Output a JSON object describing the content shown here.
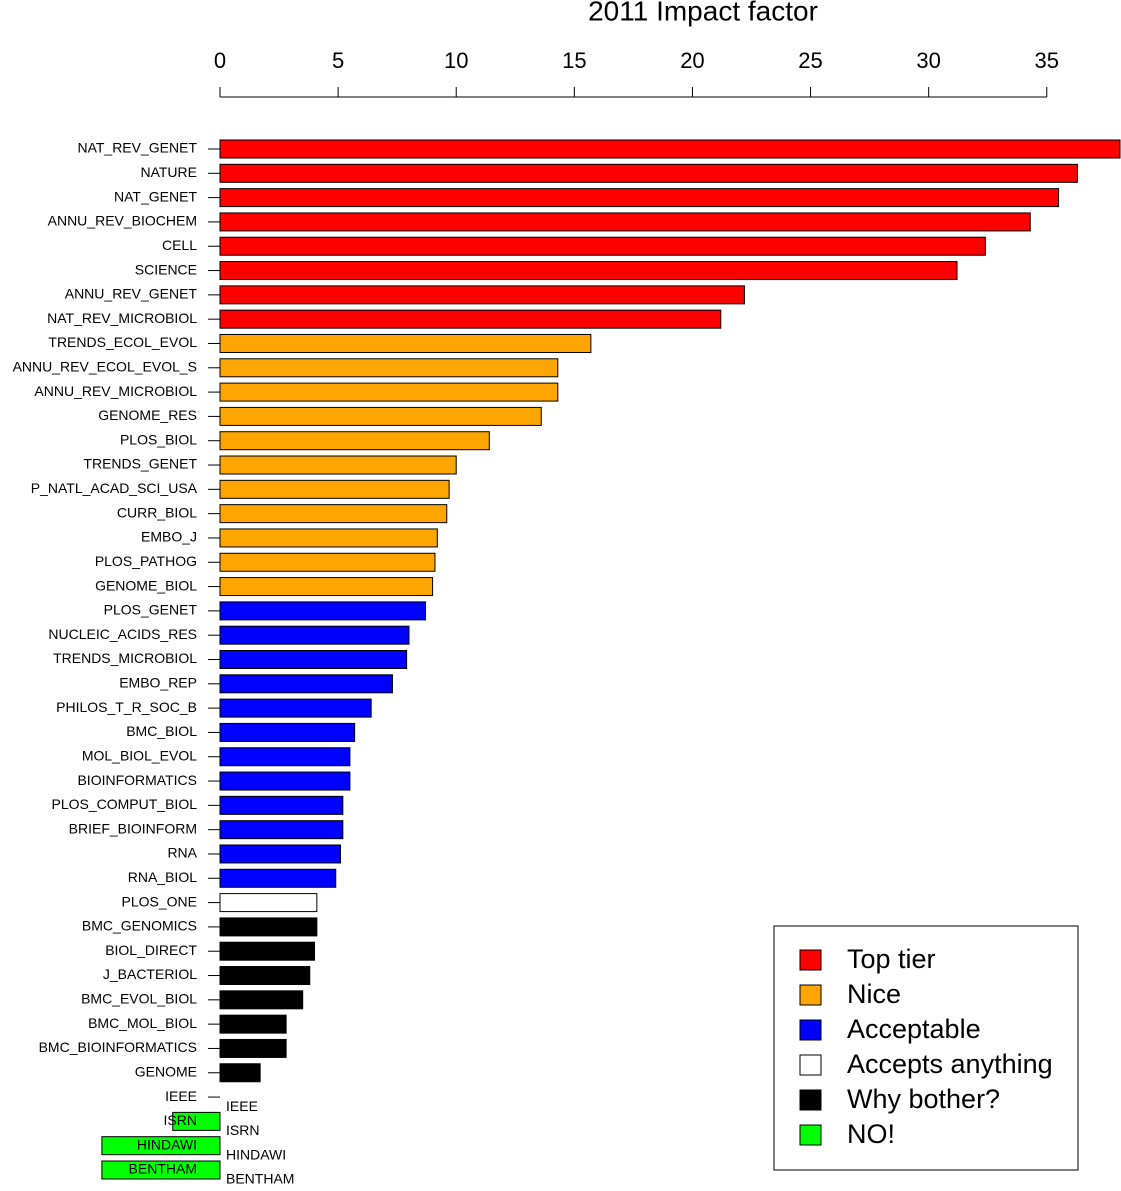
{
  "chart_data": {
    "type": "bar",
    "orientation": "horizontal",
    "title": "2011 Impact factor",
    "categories": [
      "NAT_REV_GENET",
      "NATURE",
      "NAT_GENET",
      "ANNU_REV_BIOCHEM",
      "CELL",
      "SCIENCE",
      "ANNU_REV_GENET",
      "NAT_REV_MICROBIOL",
      "TRENDS_ECOL_EVOL",
      "ANNU_REV_ECOL_EVOL_S",
      "ANNU_REV_MICROBIOL",
      "GENOME_RES",
      "PLOS_BIOL",
      "TRENDS_GENET",
      "P_NATL_ACAD_SCI_USA",
      "CURR_BIOL",
      "EMBO_J",
      "PLOS_PATHOG",
      "GENOME_BIOL",
      "PLOS_GENET",
      "NUCLEIC_ACIDS_RES",
      "TRENDS_MICROBIOL",
      "EMBO_REP",
      "PHILOS_T_R_SOC_B",
      "BMC_BIOL",
      "MOL_BIOL_EVOL",
      "BIOINFORMATICS",
      "PLOS_COMPUT_BIOL",
      "BRIEF_BIOINFORM",
      "RNA",
      "RNA_BIOL",
      "PLOS_ONE",
      "BMC_GENOMICS",
      "BIOL_DIRECT",
      "J_BACTERIOL",
      "BMC_EVOL_BIOL",
      "BMC_MOL_BIOL",
      "BMC_BIOINFORMATICS",
      "GENOME",
      "IEEE",
      "ISRN",
      "HINDAWI",
      "BENTHAM"
    ],
    "series": [
      {
        "name": "Top tier",
        "color": "#ff0000",
        "values": [
          38.1,
          36.3,
          35.5,
          34.3,
          32.4,
          31.2,
          22.2,
          21.2,
          null,
          null,
          null,
          null,
          null,
          null,
          null,
          null,
          null,
          null,
          null,
          null,
          null,
          null,
          null,
          null,
          null,
          null,
          null,
          null,
          null,
          null,
          null,
          null,
          null,
          null,
          null,
          null,
          null,
          null,
          null,
          null,
          null,
          null,
          null
        ]
      },
      {
        "name": "Nice",
        "color": "#ffa500",
        "values": [
          null,
          null,
          null,
          null,
          null,
          null,
          null,
          null,
          15.7,
          14.3,
          14.3,
          13.6,
          11.4,
          10.0,
          9.7,
          9.6,
          9.2,
          9.1,
          9.0,
          null,
          null,
          null,
          null,
          null,
          null,
          null,
          null,
          null,
          null,
          null,
          null,
          null,
          null,
          null,
          null,
          null,
          null,
          null,
          null,
          null,
          null,
          null,
          null
        ]
      },
      {
        "name": "Acceptable",
        "color": "#0000ff",
        "values": [
          null,
          null,
          null,
          null,
          null,
          null,
          null,
          null,
          null,
          null,
          null,
          null,
          null,
          null,
          null,
          null,
          null,
          null,
          null,
          8.7,
          8.0,
          7.9,
          7.3,
          6.4,
          5.7,
          5.5,
          5.5,
          5.2,
          5.2,
          5.1,
          4.9,
          null,
          null,
          null,
          null,
          null,
          null,
          null,
          null,
          null,
          null,
          null,
          null
        ]
      },
      {
        "name": "Accepts anything",
        "color": "#ffffff",
        "values": [
          null,
          null,
          null,
          null,
          null,
          null,
          null,
          null,
          null,
          null,
          null,
          null,
          null,
          null,
          null,
          null,
          null,
          null,
          null,
          null,
          null,
          null,
          null,
          null,
          null,
          null,
          null,
          null,
          null,
          null,
          null,
          4.1,
          null,
          null,
          null,
          null,
          null,
          null,
          null,
          null,
          null,
          null,
          null
        ]
      },
      {
        "name": "Why bother?",
        "color": "#000000",
        "values": [
          null,
          null,
          null,
          null,
          null,
          null,
          null,
          null,
          null,
          null,
          null,
          null,
          null,
          null,
          null,
          null,
          null,
          null,
          null,
          null,
          null,
          null,
          null,
          null,
          null,
          null,
          null,
          null,
          null,
          null,
          null,
          null,
          4.1,
          4.0,
          3.8,
          3.5,
          2.8,
          2.8,
          1.7,
          null,
          null,
          null,
          null
        ]
      },
      {
        "name": "NO!",
        "color": "#00ff00",
        "values": [
          null,
          null,
          null,
          null,
          null,
          null,
          null,
          null,
          null,
          null,
          null,
          null,
          null,
          null,
          null,
          null,
          null,
          null,
          null,
          null,
          null,
          null,
          null,
          null,
          null,
          null,
          null,
          null,
          null,
          null,
          null,
          null,
          null,
          null,
          null,
          null,
          null,
          null,
          null,
          0,
          -2.0,
          -5.0,
          -5.0
        ]
      }
    ],
    "annotations": [
      "IEEE",
      "ISRN",
      "HINDAWI",
      "BENTHAM"
    ],
    "xlim": [
      -5.08,
      38.1
    ],
    "xticks": [
      0,
      5,
      10,
      15,
      20,
      25,
      30,
      35
    ],
    "legend": "bottom-right"
  }
}
